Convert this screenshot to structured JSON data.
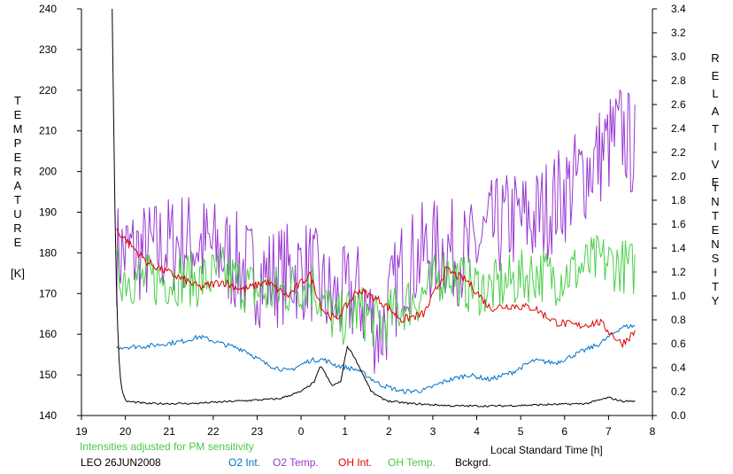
{
  "chart_data": {
    "type": "line",
    "left_axis": {
      "label_chars": [
        "T",
        "E",
        "M",
        "P",
        "E",
        "R",
        "A",
        "T",
        "U",
        "R",
        "E"
      ],
      "unit": "[K]",
      "ylim": [
        140,
        240
      ],
      "ticks": [
        "140",
        "150",
        "160",
        "170",
        "180",
        "190",
        "200",
        "210",
        "220",
        "230",
        "240"
      ]
    },
    "right_axis": {
      "label_chars": [
        "R",
        "E",
        "L",
        "A",
        "T",
        "I",
        "V",
        "E"
      ],
      "label_chars2": [
        "I",
        "N",
        "T",
        "E",
        "N",
        "S",
        "I",
        "T",
        "Y"
      ],
      "ylim": [
        0.0,
        3.4
      ],
      "ticks": [
        "0.0",
        "0.2",
        "0.4",
        "0.6",
        "0.8",
        "1.0",
        "1.2",
        "1.4",
        "1.6",
        "1.8",
        "2.0",
        "2.2",
        "2.4",
        "2.6",
        "2.8",
        "3.0",
        "3.2",
        "3.4"
      ]
    },
    "x_axis": {
      "label": "Local Standard Time [h]",
      "xlim": [
        19,
        8
      ],
      "ticks": [
        "19",
        "20",
        "21",
        "22",
        "23",
        "0",
        "1",
        "2",
        "3",
        "4",
        "5",
        "6",
        "7",
        "8"
      ]
    },
    "note": "Intensities adjusted for PM sensitivity",
    "station": "LEO 26JUN2008",
    "series": [
      {
        "name": "O2 Int.",
        "axis": "right",
        "color": "#0070c8",
        "x": [
          19.8,
          20.5,
          21.3,
          21.7,
          22.2,
          22.7,
          23.2,
          23.7,
          24.2,
          24.5,
          24.8,
          25.3,
          25.8,
          26.3,
          26.8,
          27.3,
          27.8,
          28.3,
          28.8,
          29.3,
          29.8,
          30.3,
          30.8,
          31.3,
          31.6
        ],
        "values": [
          0.57,
          0.58,
          0.62,
          0.66,
          0.6,
          0.55,
          0.43,
          0.37,
          0.46,
          0.47,
          0.42,
          0.38,
          0.26,
          0.2,
          0.21,
          0.29,
          0.34,
          0.3,
          0.36,
          0.46,
          0.44,
          0.52,
          0.6,
          0.74,
          0.75
        ]
      },
      {
        "name": "O2 Temp.",
        "axis": "left",
        "color": "#9838d0",
        "x": [
          19.8,
          20.5,
          21.3,
          21.7,
          22.2,
          22.7,
          23.2,
          23.7,
          24.2,
          24.5,
          24.8,
          25.3,
          25.8,
          26.3,
          26.8,
          27.3,
          27.8,
          28.3,
          28.8,
          29.3,
          29.8,
          30.3,
          30.8,
          31.3,
          31.6
        ],
        "values": [
          180,
          180,
          183,
          182,
          180,
          176,
          174,
          175,
          176,
          170,
          168,
          170,
          160,
          176,
          180,
          181,
          179,
          185,
          188,
          188,
          193,
          198,
          204,
          210,
          205
        ]
      },
      {
        "name": "OH Int.",
        "axis": "right",
        "color": "#e00000",
        "x": [
          19.8,
          20.5,
          21.3,
          21.7,
          22.2,
          22.7,
          23.2,
          23.7,
          24.2,
          24.5,
          24.8,
          25.3,
          25.8,
          26.3,
          26.8,
          27.3,
          27.8,
          28.3,
          28.8,
          29.3,
          29.8,
          30.3,
          30.8,
          31.3,
          31.6
        ],
        "values": [
          1.55,
          1.28,
          1.14,
          1.07,
          1.12,
          1.05,
          1.12,
          1.0,
          1.18,
          0.88,
          0.8,
          1.05,
          0.96,
          0.8,
          0.85,
          1.22,
          1.12,
          0.9,
          0.92,
          0.9,
          0.78,
          0.75,
          0.78,
          0.6,
          0.7
        ]
      },
      {
        "name": "OH Temp.",
        "axis": "left",
        "color": "#48d048",
        "x": [
          19.8,
          20.5,
          21.3,
          21.7,
          22.2,
          22.7,
          23.2,
          23.7,
          24.2,
          24.5,
          24.8,
          25.3,
          25.8,
          26.3,
          26.8,
          27.3,
          27.8,
          28.3,
          28.8,
          29.3,
          29.8,
          30.3,
          30.8,
          31.3,
          31.6
        ],
        "values": [
          175,
          173,
          174,
          173,
          175,
          172,
          170,
          171,
          173,
          168,
          163,
          166,
          162,
          167,
          170,
          176,
          172,
          171,
          173,
          175,
          174,
          176,
          178,
          177,
          176
        ]
      },
      {
        "name": "Bckgrd.",
        "axis": "right",
        "color": "#000000",
        "x": [
          19.7,
          19.75,
          19.8,
          19.85,
          19.9,
          20.0,
          20.5,
          21.5,
          22.5,
          23.5,
          24.0,
          24.3,
          24.45,
          24.55,
          24.7,
          24.9,
          25.05,
          25.2,
          25.4,
          25.6,
          25.8,
          26.0,
          26.5,
          27.5,
          28.5,
          29.5,
          30.5,
          31.0,
          31.3,
          31.6
        ],
        "values": [
          3.4,
          2.0,
          1.0,
          0.5,
          0.25,
          0.12,
          0.1,
          0.1,
          0.12,
          0.14,
          0.2,
          0.28,
          0.42,
          0.35,
          0.25,
          0.28,
          0.58,
          0.5,
          0.35,
          0.2,
          0.15,
          0.12,
          0.1,
          0.08,
          0.08,
          0.09,
          0.1,
          0.15,
          0.12,
          0.12
        ]
      }
    ]
  }
}
